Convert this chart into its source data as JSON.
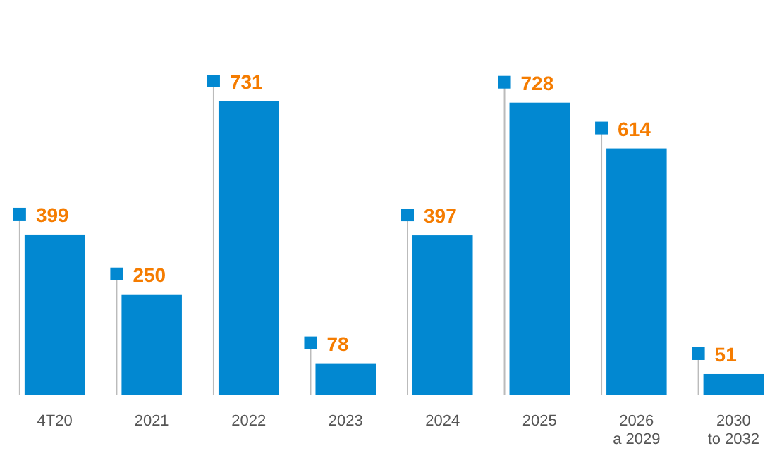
{
  "chart_data": {
    "type": "bar",
    "categories": [
      "4T20",
      "2021",
      "2022",
      "2023",
      "2024",
      "2025",
      "2026\na 2029",
      "2030\nto 2032"
    ],
    "values": [
      399,
      250,
      731,
      78,
      397,
      728,
      614,
      51
    ],
    "color": "#0288d1",
    "data_labels": true
  }
}
